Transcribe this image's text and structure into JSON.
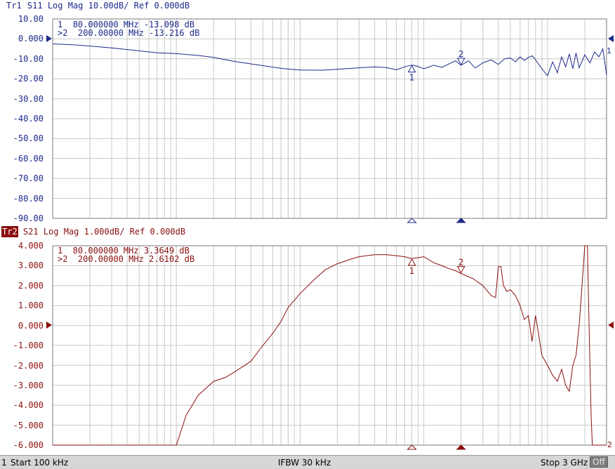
{
  "trace1": {
    "label": "Tr1",
    "header": "S11 Log Mag 10.00dB/ Ref 0.000dB",
    "color": "#1c2a8a",
    "markers": [
      {
        "row": "1",
        "text": "80.000000 MHz -13.098 dB"
      },
      {
        "row": ">2",
        "text": "200.00000 MHz -13.216 dB"
      }
    ],
    "marker_labels": [
      "1",
      "2"
    ],
    "right_label": "1"
  },
  "trace2": {
    "label": "Tr2",
    "header": "S21 Log Mag 1.000dB/ Ref 0.000dB",
    "color": "#8a0f0f",
    "markers": [
      {
        "row": "1",
        "text": "80.000000 MHz 3.3649 dB"
      },
      {
        "row": ">2",
        "text": "200.00000 MHz 2.6102 dB"
      }
    ],
    "marker_labels": [
      "1",
      "2"
    ],
    "right_label": "2"
  },
  "status": {
    "channel": "1",
    "start": "Start 100 kHz",
    "ifbw": "IFBW 30 kHz",
    "stop": "Stop 3 GHz",
    "off": "Off"
  },
  "chart_data": [
    {
      "type": "line",
      "title": "Tr1 S11 Log Mag 10.00dB/ Ref 0.000dB",
      "xlabel": "",
      "ylabel": "",
      "x_scale": "log",
      "xlim": [
        "100 kHz",
        "3 GHz"
      ],
      "ylim": [
        -90,
        10
      ],
      "y_ticks": [
        "10.00",
        "0.000",
        "-10.00",
        "-20.00",
        "-30.00",
        "-40.00",
        "-50.00",
        "-60.00",
        "-70.00",
        "-80.00",
        "-90.00"
      ],
      "series": [
        {
          "x_hz": [
            100000,
            150000,
            200000,
            300000,
            500000,
            700000,
            1000000,
            1500000,
            2000000,
            3000000,
            5000000,
            7000000,
            10000000,
            15000000,
            20000000,
            30000000,
            40000000,
            50000000,
            60000000,
            70000000,
            80000000,
            90000000,
            100000000,
            120000000,
            140000000,
            160000000,
            180000000,
            200000000,
            230000000,
            260000000,
            300000000,
            350000000,
            400000000,
            450000000,
            500000000,
            550000000,
            600000000,
            650000000,
            700000000,
            750000000,
            800000000,
            900000000,
            1000000000,
            1100000000,
            1200000000,
            1300000000,
            1400000000,
            1500000000,
            1600000000,
            1700000000,
            1800000000,
            2000000000,
            2200000000,
            2400000000,
            2600000000,
            2800000000,
            3000000000
          ],
          "values": [
            -2.5,
            -3.0,
            -3.6,
            -4.5,
            -6.0,
            -7.0,
            -7.4,
            -8.3,
            -9.3,
            -11.4,
            -13.4,
            -14.8,
            -15.6,
            -15.7,
            -15.2,
            -14.5,
            -14.0,
            -14.4,
            -15.5,
            -14.0,
            -13.1,
            -13.8,
            -15.0,
            -13.2,
            -14.3,
            -12.5,
            -11.0,
            -13.2,
            -11.0,
            -14.6,
            -12.0,
            -10.5,
            -12.8,
            -10.0,
            -9.5,
            -11.5,
            -9.0,
            -10.8,
            -9.3,
            -8.5,
            -10.5,
            -15.0,
            -18.5,
            -11.5,
            -17.0,
            -9.0,
            -14.0,
            -7.5,
            -15.0,
            -7.0,
            -14.5,
            -8.0,
            -12.0,
            -6.5,
            -9.0,
            -5.0,
            -18.0
          ]
        }
      ],
      "markers": [
        {
          "x_hz": 80000000,
          "value": -13.098
        },
        {
          "x_hz": 200000000,
          "value": -13.216
        }
      ]
    },
    {
      "type": "line",
      "title": "Tr2 S21 Log Mag 1.000dB/ Ref 0.000dB",
      "xlabel": "",
      "ylabel": "",
      "x_scale": "log",
      "xlim": [
        "100 kHz",
        "3 GHz"
      ],
      "ylim": [
        -6,
        4
      ],
      "y_ticks": [
        "4.000",
        "3.000",
        "2.000",
        "1.000",
        "0.000",
        "-1.000",
        "-2.000",
        "-3.000",
        "-4.000",
        "-5.000",
        "-6.000"
      ],
      "series": [
        {
          "x_hz": [
            100000,
            500000,
            1000000,
            1200000,
            1500000,
            2000000,
            2500000,
            3000000,
            4000000,
            5000000,
            6000000,
            7000000,
            8000000,
            10000000,
            13000000,
            16000000,
            20000000,
            25000000,
            30000000,
            40000000,
            50000000,
            60000000,
            70000000,
            80000000,
            90000000,
            100000000,
            120000000,
            140000000,
            160000000,
            180000000,
            200000000,
            250000000,
            300000000,
            350000000,
            380000000,
            400000000,
            420000000,
            440000000,
            470000000,
            500000000,
            550000000,
            600000000,
            650000000,
            700000000,
            750000000,
            800000000,
            850000000,
            900000000,
            1000000000,
            1100000000,
            1200000000,
            1300000000,
            1400000000,
            1500000000,
            1600000000,
            1700000000,
            1800000000,
            1900000000,
            2000000000,
            2100000000,
            2150000000,
            2200000000,
            2250000000,
            2300000000,
            2400000000,
            2500000000,
            3000000000
          ],
          "values": [
            -6.0,
            -6.0,
            -6.0,
            -4.5,
            -3.5,
            -2.8,
            -2.6,
            -2.3,
            -1.8,
            -1.0,
            -0.4,
            0.2,
            0.9,
            1.6,
            2.3,
            2.8,
            3.1,
            3.3,
            3.45,
            3.55,
            3.55,
            3.5,
            3.45,
            3.36,
            3.4,
            3.45,
            3.15,
            3.0,
            2.85,
            2.75,
            2.61,
            2.35,
            2.0,
            1.5,
            1.4,
            2.95,
            2.95,
            2.0,
            1.7,
            1.8,
            1.5,
            1.0,
            0.3,
            0.5,
            -0.8,
            0.5,
            -0.5,
            -1.5,
            -2.0,
            -2.5,
            -2.8,
            -2.2,
            -3.0,
            -3.3,
            -2.0,
            -1.5,
            0.0,
            2.0,
            4.0,
            4.0,
            1.0,
            -2.0,
            -4.5,
            -6.0,
            -6.0,
            -6.0,
            -6.0
          ]
        }
      ],
      "markers": [
        {
          "x_hz": 80000000,
          "value": 3.3649
        },
        {
          "x_hz": 200000000,
          "value": 2.6102
        }
      ]
    }
  ]
}
